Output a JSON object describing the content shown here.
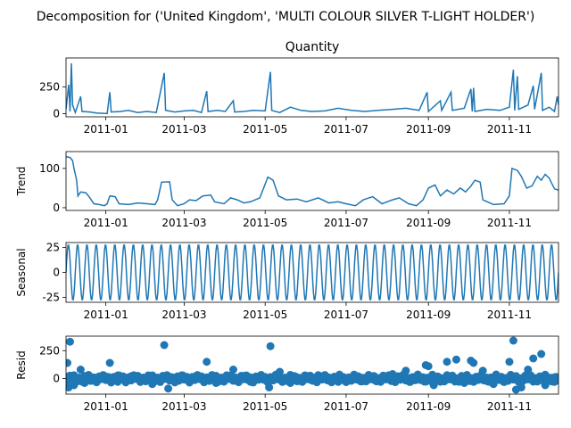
{
  "figure": {
    "suptitle": "Decomposition for ('United Kingdom', 'MULTI COLOUR SILVER T-LIGHT HOLDER')"
  },
  "colors": {
    "line": "#1f77b4",
    "zero_line": "#000000",
    "axes": "#000000"
  },
  "chart_data": [
    {
      "type": "line",
      "title": "Quantity",
      "ylabel": "",
      "xlim": [
        "2010-12-02",
        "2011-12-08"
      ],
      "ylim": [
        -30,
        520
      ],
      "yticks": [
        0,
        250
      ],
      "xticks": [
        "2011-01-01",
        "2011-03-01",
        "2011-05-01",
        "2011-07-01",
        "2011-09-01",
        "2011-11-01"
      ],
      "xtick_labels": [
        "2011-01",
        "2011-03",
        "2011-05",
        "2011-07",
        "2011-09",
        "2011-11"
      ],
      "series": [
        {
          "values": [
            [
              "2010-12-02",
              40
            ],
            [
              "2010-12-04",
              270
            ],
            [
              "2010-12-05",
              20
            ],
            [
              "2010-12-06",
              470
            ],
            [
              "2010-12-07",
              80
            ],
            [
              "2010-12-09",
              10
            ],
            [
              "2010-12-13",
              160
            ],
            [
              "2010-12-14",
              20
            ],
            [
              "2010-12-20",
              15
            ],
            [
              "2010-12-25",
              5
            ],
            [
              "2011-01-02",
              0
            ],
            [
              "2011-01-04",
              200
            ],
            [
              "2011-01-05",
              15
            ],
            [
              "2011-01-12",
              20
            ],
            [
              "2011-01-18",
              30
            ],
            [
              "2011-01-25",
              10
            ],
            [
              "2011-02-01",
              20
            ],
            [
              "2011-02-08",
              10
            ],
            [
              "2011-02-14",
              380
            ],
            [
              "2011-02-15",
              30
            ],
            [
              "2011-02-22",
              15
            ],
            [
              "2011-03-01",
              25
            ],
            [
              "2011-03-08",
              30
            ],
            [
              "2011-03-14",
              10
            ],
            [
              "2011-03-18",
              210
            ],
            [
              "2011-03-19",
              20
            ],
            [
              "2011-03-26",
              30
            ],
            [
              "2011-04-01",
              20
            ],
            [
              "2011-04-07",
              120
            ],
            [
              "2011-04-08",
              15
            ],
            [
              "2011-04-15",
              20
            ],
            [
              "2011-04-22",
              30
            ],
            [
              "2011-05-01",
              25
            ],
            [
              "2011-05-05",
              390
            ],
            [
              "2011-05-06",
              30
            ],
            [
              "2011-05-12",
              10
            ],
            [
              "2011-05-20",
              60
            ],
            [
              "2011-05-28",
              30
            ],
            [
              "2011-06-05",
              20
            ],
            [
              "2011-06-15",
              25
            ],
            [
              "2011-06-25",
              50
            ],
            [
              "2011-07-05",
              30
            ],
            [
              "2011-07-15",
              20
            ],
            [
              "2011-07-25",
              30
            ],
            [
              "2011-08-05",
              40
            ],
            [
              "2011-08-15",
              50
            ],
            [
              "2011-08-25",
              30
            ],
            [
              "2011-08-31",
              200
            ],
            [
              "2011-09-01",
              20
            ],
            [
              "2011-09-10",
              120
            ],
            [
              "2011-09-11",
              30
            ],
            [
              "2011-09-18",
              200
            ],
            [
              "2011-09-19",
              30
            ],
            [
              "2011-09-28",
              50
            ],
            [
              "2011-10-03",
              230
            ],
            [
              "2011-10-04",
              20
            ],
            [
              "2011-10-05",
              240
            ],
            [
              "2011-10-06",
              20
            ],
            [
              "2011-10-15",
              40
            ],
            [
              "2011-10-25",
              30
            ],
            [
              "2011-11-01",
              60
            ],
            [
              "2011-11-04",
              410
            ],
            [
              "2011-11-05",
              30
            ],
            [
              "2011-11-07",
              350
            ],
            [
              "2011-11-08",
              40
            ],
            [
              "2011-11-15",
              80
            ],
            [
              "2011-11-19",
              260
            ],
            [
              "2011-11-20",
              40
            ],
            [
              "2011-11-25",
              380
            ],
            [
              "2011-11-26",
              30
            ],
            [
              "2011-12-01",
              60
            ],
            [
              "2011-12-05",
              20
            ],
            [
              "2011-12-07",
              160
            ],
            [
              "2011-12-08",
              80
            ]
          ]
        }
      ]
    },
    {
      "type": "line",
      "title": "",
      "ylabel": "Trend",
      "xlim": [
        "2010-12-02",
        "2011-12-08"
      ],
      "ylim": [
        -7,
        143
      ],
      "yticks": [
        0,
        100
      ],
      "xticks": [
        "2011-01-01",
        "2011-03-01",
        "2011-05-01",
        "2011-07-01",
        "2011-09-01",
        "2011-11-01"
      ],
      "xtick_labels": [
        "2011-01",
        "2011-03",
        "2011-05",
        "2011-07",
        "2011-09",
        "2011-11"
      ],
      "series": [
        {
          "values": [
            [
              "2010-12-02",
              130
            ],
            [
              "2010-12-05",
              128
            ],
            [
              "2010-12-07",
              120
            ],
            [
              "2010-12-08",
              100
            ],
            [
              "2010-12-10",
              70
            ],
            [
              "2010-12-11",
              30
            ],
            [
              "2010-12-13",
              40
            ],
            [
              "2010-12-17",
              38
            ],
            [
              "2010-12-20",
              25
            ],
            [
              "2010-12-23",
              10
            ],
            [
              "2010-12-27",
              8
            ],
            [
              "2010-12-31",
              5
            ],
            [
              "2011-01-02",
              10
            ],
            [
              "2011-01-04",
              30
            ],
            [
              "2011-01-08",
              28
            ],
            [
              "2011-01-11",
              10
            ],
            [
              "2011-01-18",
              8
            ],
            [
              "2011-01-25",
              12
            ],
            [
              "2011-02-01",
              10
            ],
            [
              "2011-02-07",
              8
            ],
            [
              "2011-02-09",
              20
            ],
            [
              "2011-02-12",
              65
            ],
            [
              "2011-02-18",
              66
            ],
            [
              "2011-02-20",
              20
            ],
            [
              "2011-02-24",
              5
            ],
            [
              "2011-03-01",
              10
            ],
            [
              "2011-03-05",
              20
            ],
            [
              "2011-03-10",
              18
            ],
            [
              "2011-03-15",
              30
            ],
            [
              "2011-03-21",
              32
            ],
            [
              "2011-03-24",
              15
            ],
            [
              "2011-03-31",
              10
            ],
            [
              "2011-04-05",
              25
            ],
            [
              "2011-04-10",
              20
            ],
            [
              "2011-04-15",
              12
            ],
            [
              "2011-04-20",
              15
            ],
            [
              "2011-04-27",
              25
            ],
            [
              "2011-05-01",
              60
            ],
            [
              "2011-05-03",
              78
            ],
            [
              "2011-05-07",
              70
            ],
            [
              "2011-05-11",
              30
            ],
            [
              "2011-05-17",
              20
            ],
            [
              "2011-05-25",
              22
            ],
            [
              "2011-06-01",
              15
            ],
            [
              "2011-06-10",
              25
            ],
            [
              "2011-06-18",
              12
            ],
            [
              "2011-06-25",
              15
            ],
            [
              "2011-07-01",
              10
            ],
            [
              "2011-07-08",
              5
            ],
            [
              "2011-07-14",
              20
            ],
            [
              "2011-07-21",
              28
            ],
            [
              "2011-07-28",
              10
            ],
            [
              "2011-08-05",
              20
            ],
            [
              "2011-08-10",
              25
            ],
            [
              "2011-08-17",
              10
            ],
            [
              "2011-08-23",
              5
            ],
            [
              "2011-08-28",
              20
            ],
            [
              "2011-09-01",
              50
            ],
            [
              "2011-09-06",
              58
            ],
            [
              "2011-09-10",
              30
            ],
            [
              "2011-09-15",
              45
            ],
            [
              "2011-09-20",
              35
            ],
            [
              "2011-09-25",
              50
            ],
            [
              "2011-09-29",
              40
            ],
            [
              "2011-10-03",
              55
            ],
            [
              "2011-10-06",
              70
            ],
            [
              "2011-10-10",
              65
            ],
            [
              "2011-10-12",
              20
            ],
            [
              "2011-10-20",
              8
            ],
            [
              "2011-10-28",
              10
            ],
            [
              "2011-11-01",
              30
            ],
            [
              "2011-11-03",
              100
            ],
            [
              "2011-11-07",
              95
            ],
            [
              "2011-11-10",
              80
            ],
            [
              "2011-11-14",
              50
            ],
            [
              "2011-11-18",
              55
            ],
            [
              "2011-11-22",
              80
            ],
            [
              "2011-11-25",
              70
            ],
            [
              "2011-11-28",
              85
            ],
            [
              "2011-12-01",
              75
            ],
            [
              "2011-12-05",
              48
            ],
            [
              "2011-12-08",
              45
            ]
          ]
        }
      ]
    },
    {
      "type": "line",
      "title": "",
      "ylabel": "Seasonal",
      "xlim": [
        "2010-12-02",
        "2011-12-08"
      ],
      "ylim": [
        -30,
        30
      ],
      "yticks": [
        -25,
        0,
        25
      ],
      "xticks": [
        "2011-01-01",
        "2011-03-01",
        "2011-05-01",
        "2011-07-01",
        "2011-09-01",
        "2011-11-01"
      ],
      "xtick_labels": [
        "2011-01",
        "2011-03",
        "2011-05",
        "2011-07",
        "2011-09",
        "2011-11"
      ],
      "period_days": 7,
      "amplitude": 28,
      "series": [
        {
          "pattern": "weekly",
          "values": []
        }
      ]
    },
    {
      "type": "scatter",
      "title": "",
      "ylabel": "Resid",
      "xlim": [
        "2010-12-02",
        "2011-12-08"
      ],
      "ylim": [
        -140,
        380
      ],
      "yticks": [
        0,
        250
      ],
      "zero_line": 0,
      "xticks": [
        "2011-01-01",
        "2011-03-01",
        "2011-05-01",
        "2011-07-01",
        "2011-09-01",
        "2011-11-01"
      ],
      "xtick_labels": [
        "2011-01",
        "2011-03",
        "2011-05",
        "2011-07",
        "2011-09",
        "2011-11"
      ],
      "series": [
        {
          "values": [
            [
              "2010-12-03",
              140
            ],
            [
              "2010-12-05",
              330
            ],
            [
              "2010-12-04",
              -80
            ],
            [
              "2010-12-08",
              -60
            ],
            [
              "2010-12-13",
              80
            ],
            [
              "2010-12-16",
              -40
            ],
            [
              "2010-12-20",
              -20
            ],
            [
              "2011-01-04",
              140
            ],
            [
              "2011-01-10",
              -30
            ],
            [
              "2011-01-20",
              20
            ],
            [
              "2011-02-05",
              -50
            ],
            [
              "2011-02-14",
              300
            ],
            [
              "2011-02-17",
              -90
            ],
            [
              "2011-02-25",
              -20
            ],
            [
              "2011-03-18",
              150
            ],
            [
              "2011-03-25",
              -40
            ],
            [
              "2011-04-07",
              80
            ],
            [
              "2011-04-20",
              -30
            ],
            [
              "2011-05-05",
              290
            ],
            [
              "2011-05-04",
              -80
            ],
            [
              "2011-05-12",
              60
            ],
            [
              "2011-05-20",
              -40
            ],
            [
              "2011-06-10",
              30
            ],
            [
              "2011-06-25",
              -30
            ],
            [
              "2011-07-10",
              20
            ],
            [
              "2011-07-25",
              -20
            ],
            [
              "2011-08-05",
              40
            ],
            [
              "2011-08-15",
              70
            ],
            [
              "2011-08-30",
              120
            ],
            [
              "2011-09-01",
              110
            ],
            [
              "2011-09-05",
              -60
            ],
            [
              "2011-09-15",
              150
            ],
            [
              "2011-09-22",
              170
            ],
            [
              "2011-09-28",
              -40
            ],
            [
              "2011-10-03",
              160
            ],
            [
              "2011-10-05",
              140
            ],
            [
              "2011-10-12",
              70
            ],
            [
              "2011-10-20",
              -50
            ],
            [
              "2011-11-01",
              150
            ],
            [
              "2011-11-04",
              340
            ],
            [
              "2011-11-06",
              -100
            ],
            [
              "2011-11-10",
              -80
            ],
            [
              "2011-11-15",
              80
            ],
            [
              "2011-11-19",
              180
            ],
            [
              "2011-11-25",
              220
            ],
            [
              "2011-11-28",
              -60
            ],
            [
              "2011-12-05",
              -30
            ]
          ]
        }
      ]
    }
  ]
}
